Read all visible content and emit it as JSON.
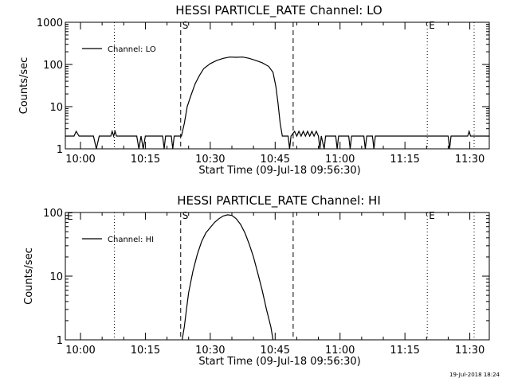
{
  "footer_timestamp": "19-Jul-2018 18:24",
  "chart_data": [
    {
      "type": "line",
      "title": "HESSI PARTICLE_RATE Channel: LO",
      "xlabel": "Start Time (09-Jul-18 09:56:30)",
      "ylabel": "Counts/sec",
      "yscale": "log",
      "xlim": [
        "09:56:30",
        "11:34:30"
      ],
      "ylim": [
        1,
        1000
      ],
      "x_ticks": [
        "10:00",
        "10:15",
        "10:30",
        "10:45",
        "11:00",
        "11:15",
        "11:30"
      ],
      "y_ticks": [
        "1",
        "10",
        "100",
        "1000"
      ],
      "legend": {
        "entries": [
          "Channel: LO"
        ],
        "position": "top-left"
      },
      "markers": [
        {
          "label": "S",
          "time": "10:23:10",
          "style": "dashed"
        },
        {
          "label": "",
          "time": "10:49:10",
          "style": "dashed"
        },
        {
          "label": "",
          "time": "10:07:50",
          "style": "dotted"
        },
        {
          "label": "E",
          "time": "11:20:10",
          "style": "dotted"
        },
        {
          "label": "",
          "time": "11:31:00",
          "style": "dotted"
        }
      ],
      "series": [
        {
          "name": "Channel: LO",
          "points": [
            [
              "09:56:30",
              2
            ],
            [
              "09:58:30",
              2
            ],
            [
              "09:59:00",
              2.6
            ],
            [
              "09:59:40",
              2
            ],
            [
              "10:03:00",
              2
            ],
            [
              "10:03:40",
              1
            ],
            [
              "10:04:20",
              2
            ],
            [
              "10:07:00",
              2
            ],
            [
              "10:07:20",
              2.6
            ],
            [
              "10:07:40",
              2
            ],
            [
              "10:08:00",
              2.6
            ],
            [
              "10:08:20",
              2
            ],
            [
              "10:13:00",
              2
            ],
            [
              "10:13:30",
              1
            ],
            [
              "10:14:00",
              2
            ],
            [
              "10:14:30",
              1
            ],
            [
              "10:15:00",
              2
            ],
            [
              "10:19:00",
              2
            ],
            [
              "10:19:20",
              1
            ],
            [
              "10:19:40",
              2
            ],
            [
              "10:21:00",
              2
            ],
            [
              "10:21:20",
              1
            ],
            [
              "10:21:40",
              2
            ],
            [
              "10:23:20",
              2
            ],
            [
              "10:24:00",
              4
            ],
            [
              "10:24:40",
              10
            ],
            [
              "10:25:30",
              18
            ],
            [
              "10:26:30",
              35
            ],
            [
              "10:27:30",
              55
            ],
            [
              "10:28:30",
              80
            ],
            [
              "10:30:00",
              105
            ],
            [
              "10:31:30",
              125
            ],
            [
              "10:33:00",
              140
            ],
            [
              "10:34:30",
              150
            ],
            [
              "10:36:00",
              148
            ],
            [
              "10:37:30",
              150
            ],
            [
              "10:39:00",
              140
            ],
            [
              "10:40:30",
              125
            ],
            [
              "10:42:00",
              110
            ],
            [
              "10:43:30",
              90
            ],
            [
              "10:44:30",
              65
            ],
            [
              "10:45:10",
              30
            ],
            [
              "10:45:40",
              12
            ],
            [
              "10:46:10",
              4
            ],
            [
              "10:46:40",
              2
            ],
            [
              "10:48:00",
              2
            ],
            [
              "10:48:20",
              1
            ],
            [
              "10:48:40",
              2
            ],
            [
              "10:49:30",
              2.6
            ],
            [
              "10:50:00",
              2
            ],
            [
              "10:50:30",
              2.6
            ],
            [
              "10:51:00",
              2
            ],
            [
              "10:51:30",
              2.6
            ],
            [
              "10:52:00",
              2
            ],
            [
              "10:52:30",
              2.6
            ],
            [
              "10:53:00",
              2
            ],
            [
              "10:53:30",
              2.6
            ],
            [
              "10:54:00",
              2
            ],
            [
              "10:54:30",
              2.6
            ],
            [
              "10:55:00",
              2
            ],
            [
              "10:55:20",
              1
            ],
            [
              "10:55:40",
              2
            ],
            [
              "10:56:20",
              1
            ],
            [
              "10:56:40",
              2
            ],
            [
              "10:59:00",
              2
            ],
            [
              "10:59:20",
              1
            ],
            [
              "10:59:40",
              2
            ],
            [
              "11:02:00",
              2
            ],
            [
              "11:02:20",
              1
            ],
            [
              "11:02:40",
              2
            ],
            [
              "11:05:30",
              2
            ],
            [
              "11:05:50",
              1
            ],
            [
              "11:06:10",
              2
            ],
            [
              "11:07:30",
              2
            ],
            [
              "11:07:50",
              1
            ],
            [
              "11:08:10",
              2
            ],
            [
              "11:25:00",
              2
            ],
            [
              "11:25:20",
              1
            ],
            [
              "11:25:40",
              2
            ],
            [
              "11:29:30",
              2
            ],
            [
              "11:29:50",
              2.6
            ],
            [
              "11:30:10",
              2
            ],
            [
              "11:34:30",
              2
            ]
          ]
        }
      ]
    },
    {
      "type": "line",
      "title": "HESSI PARTICLE_RATE Channel: HI",
      "xlabel": "Start Time (09-Jul-18 09:56:30)",
      "ylabel": "Counts/sec",
      "yscale": "log",
      "xlim": [
        "09:56:30",
        "11:34:30"
      ],
      "ylim": [
        1,
        100
      ],
      "x_ticks": [
        "10:00",
        "10:15",
        "10:30",
        "10:45",
        "11:00",
        "11:15",
        "11:30"
      ],
      "y_ticks": [
        "1",
        "10",
        "100"
      ],
      "legend": {
        "entries": [
          "Channel: HI"
        ],
        "position": "top-left"
      },
      "markers": [
        {
          "label": "S",
          "time": "10:23:10",
          "style": "dashed"
        },
        {
          "label": "",
          "time": "10:49:10",
          "style": "dashed"
        },
        {
          "label": "",
          "time": "10:07:50",
          "style": "dotted"
        },
        {
          "label": "E",
          "time": "11:20:10",
          "style": "dotted"
        },
        {
          "label": "",
          "time": "11:31:00",
          "style": "dotted"
        }
      ],
      "corner_label": "E",
      "series": [
        {
          "name": "Channel: HI",
          "points": [
            [
              "10:23:30",
              1
            ],
            [
              "10:24:00",
              1.6
            ],
            [
              "10:24:30",
              3
            ],
            [
              "10:25:00",
              5.5
            ],
            [
              "10:26:00",
              12
            ],
            [
              "10:27:00",
              22
            ],
            [
              "10:28:00",
              35
            ],
            [
              "10:29:00",
              48
            ],
            [
              "10:30:00",
              58
            ],
            [
              "10:31:00",
              70
            ],
            [
              "10:32:00",
              80
            ],
            [
              "10:33:00",
              88
            ],
            [
              "10:34:00",
              92
            ],
            [
              "10:35:00",
              90
            ],
            [
              "10:36:00",
              80
            ],
            [
              "10:37:00",
              65
            ],
            [
              "10:38:00",
              48
            ],
            [
              "10:39:00",
              32
            ],
            [
              "10:40:00",
              20
            ],
            [
              "10:41:00",
              11
            ],
            [
              "10:42:00",
              6
            ],
            [
              "10:43:00",
              3
            ],
            [
              "10:44:00",
              1.6
            ],
            [
              "10:44:30",
              1
            ]
          ]
        }
      ]
    }
  ]
}
